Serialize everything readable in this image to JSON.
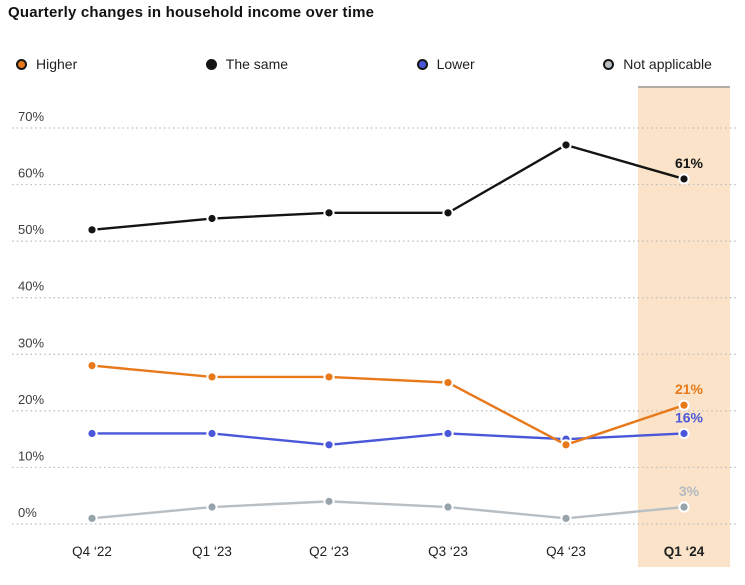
{
  "title": "Quarterly changes in household income over time",
  "chart_data": {
    "type": "line",
    "title": "Quarterly changes in household income over time",
    "categories": [
      "Q4 ‘22",
      "Q1 ‘23",
      "Q2 ‘23",
      "Q3 ‘23",
      "Q4 ‘23",
      "Q1 ‘24"
    ],
    "series": [
      {
        "name": "Higher",
        "color": "#E8791A",
        "dot_color": "#E8791A",
        "label_color": "#E8791A",
        "values": [
          28,
          26,
          26,
          25,
          14,
          21
        ],
        "end_label": "21%"
      },
      {
        "name": "The same",
        "color": "#141414",
        "dot_color": "#141414",
        "label_color": "#141414",
        "values": [
          52,
          54,
          55,
          55,
          67,
          61
        ],
        "end_label": "61%"
      },
      {
        "name": "Lower",
        "color": "#4A57D9",
        "dot_color": "#4A57D9",
        "label_color": "#4A57D9",
        "values": [
          16,
          16,
          14,
          16,
          15,
          16
        ],
        "end_label": "16%"
      },
      {
        "name": "Not applicable",
        "color": "#B7BEC4",
        "dot_color": "#97A3AB",
        "label_color": "#B3BAC0",
        "values": [
          1,
          3,
          4,
          3,
          1,
          3
        ],
        "end_label": "3%"
      }
    ],
    "ylim": [
      0,
      70
    ],
    "ytick_labels": [
      "0%",
      "10%",
      "20%",
      "30%",
      "40%",
      "50%",
      "60%",
      "70%"
    ],
    "grid": "dotted-horizontal",
    "gridline_color": "#BFBFBF",
    "axis_text_color": "#3D3D3D",
    "legend_position": "top",
    "legend_marker_border": "#151515",
    "highlight": {
      "category": "Q1 ‘24",
      "fill": "#FAE3C8",
      "border_top": "#B3ACA5"
    }
  }
}
